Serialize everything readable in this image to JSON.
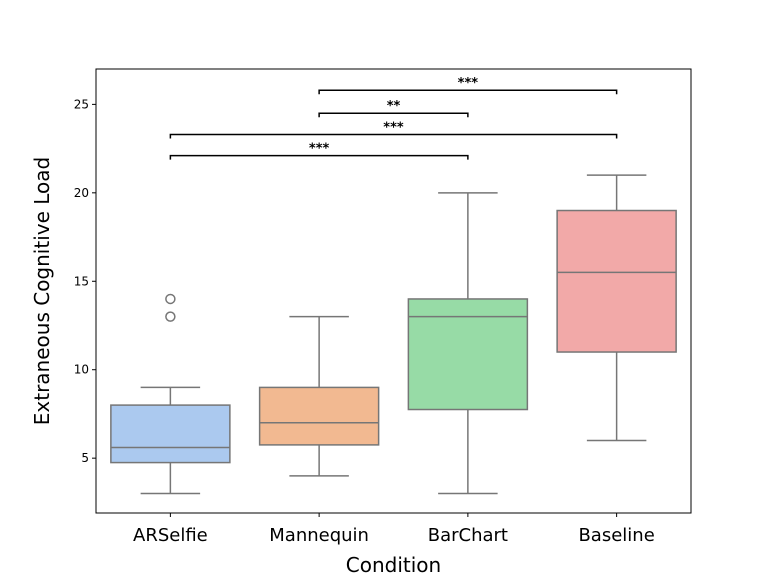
{
  "chart_data": {
    "type": "box",
    "xlabel": "Condition",
    "ylabel": "Extraneous Cognitive Load",
    "ylim": [
      1.9,
      27
    ],
    "yticks": [
      5,
      10,
      15,
      20,
      25
    ],
    "grid": false,
    "categories": [
      "ARSelfie",
      "Mannequin",
      "BarChart",
      "Baseline"
    ],
    "boxes": [
      {
        "category": "ARSelfie",
        "color": "#abc9ef",
        "whisker_low": 3,
        "q1": 4.75,
        "median": 5.6,
        "q3": 8,
        "whisker_high": 9,
        "outliers": [
          13,
          14
        ]
      },
      {
        "category": "Mannequin",
        "color": "#f2b991",
        "whisker_low": 4,
        "q1": 5.75,
        "median": 7,
        "q3": 9,
        "whisker_high": 13,
        "outliers": []
      },
      {
        "category": "BarChart",
        "color": "#97dba6",
        "whisker_low": 3,
        "q1": 7.75,
        "median": 13,
        "q3": 14,
        "whisker_high": 20,
        "outliers": []
      },
      {
        "category": "Baseline",
        "color": "#f2a9a8",
        "whisker_low": 6,
        "q1": 11,
        "median": 15.5,
        "q3": 19,
        "whisker_high": 21,
        "outliers": []
      }
    ],
    "significance": [
      {
        "from": "ARSelfie",
        "to": "BarChart",
        "level": 22.1,
        "label": "***"
      },
      {
        "from": "ARSelfie",
        "to": "Baseline",
        "level": 23.3,
        "label": "***"
      },
      {
        "from": "Mannequin",
        "to": "BarChart",
        "level": 24.5,
        "label": "**"
      },
      {
        "from": "Mannequin",
        "to": "Baseline",
        "level": 25.8,
        "label": "***"
      }
    ]
  }
}
